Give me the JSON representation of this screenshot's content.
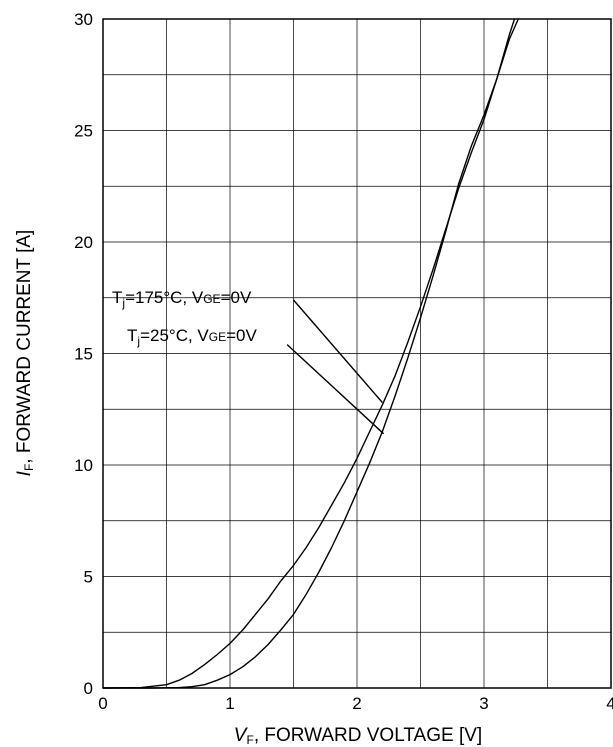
{
  "chart_data": {
    "type": "line",
    "xlabel": {
      "symbol": "V",
      "subscript": "F",
      "text": ", FORWARD VOLTAGE [V]"
    },
    "ylabel": {
      "symbol": "I",
      "subscript": "F",
      "text": ", FORWARD CURRENT [A]"
    },
    "xlim": [
      0,
      4
    ],
    "ylim": [
      0,
      30
    ],
    "x_ticks": [
      "0",
      "1",
      "2",
      "3",
      "4"
    ],
    "y_ticks": [
      "0",
      "5",
      "10",
      "15",
      "20",
      "25",
      "30"
    ],
    "x_gridlines": [
      0.5,
      1,
      1.5,
      2,
      2.5,
      3,
      3.5
    ],
    "y_gridlines": [
      2.5,
      5,
      7.5,
      10,
      12.5,
      15,
      17.5,
      20,
      22.5,
      25,
      27.5
    ],
    "grid": true,
    "series": [
      {
        "name": "Tj=175°C, VGE=0V",
        "label": {
          "T": "T",
          "j": "j",
          "temp": "=175°C, V",
          "GE": "GE",
          "rest": "=0V"
        },
        "x": [
          0,
          0.3,
          0.5,
          0.6,
          0.7,
          0.8,
          0.9,
          1.0,
          1.1,
          1.2,
          1.3,
          1.4,
          1.5,
          1.6,
          1.7,
          1.8,
          1.9,
          2.0,
          2.1,
          2.2,
          2.3,
          2.4,
          2.5,
          2.6,
          2.7,
          2.8,
          2.9,
          3.0,
          3.1,
          3.2,
          3.24
        ],
        "y": [
          0,
          0.02,
          0.15,
          0.35,
          0.65,
          1.05,
          1.5,
          2.0,
          2.6,
          3.3,
          4.0,
          4.8,
          5.5,
          6.3,
          7.2,
          8.2,
          9.2,
          10.3,
          11.5,
          12.7,
          14.0,
          15.5,
          17.1,
          18.8,
          20.6,
          22.4,
          24.0,
          25.5,
          27.3,
          29.3,
          30.0
        ]
      },
      {
        "name": "Tj=25°C, VGE=0V",
        "label": {
          "T": "T",
          "j": "j",
          "temp": "=25°C, V",
          "GE": "GE",
          "rest": "=0V"
        },
        "x": [
          0,
          0.4,
          0.6,
          0.7,
          0.8,
          0.9,
          1.0,
          1.1,
          1.2,
          1.3,
          1.4,
          1.5,
          1.6,
          1.7,
          1.8,
          1.9,
          2.0,
          2.1,
          2.2,
          2.3,
          2.4,
          2.5,
          2.6,
          2.7,
          2.8,
          2.9,
          3.0,
          3.1,
          3.2,
          3.27
        ],
        "y": [
          0,
          0.0,
          0.02,
          0.06,
          0.15,
          0.35,
          0.6,
          0.95,
          1.4,
          1.95,
          2.6,
          3.3,
          4.2,
          5.2,
          6.3,
          7.5,
          8.8,
          10.1,
          11.5,
          13.1,
          14.8,
          16.6,
          18.5,
          20.5,
          22.6,
          24.3,
          25.7,
          27.3,
          29.1,
          30.0
        ]
      }
    ],
    "annotations": [
      {
        "series": 0,
        "from": [
          1.5,
          17.4
        ],
        "to": [
          2.2,
          12.8
        ]
      },
      {
        "series": 1,
        "from": [
          1.45,
          15.4
        ],
        "to": [
          2.21,
          11.4
        ]
      }
    ]
  }
}
